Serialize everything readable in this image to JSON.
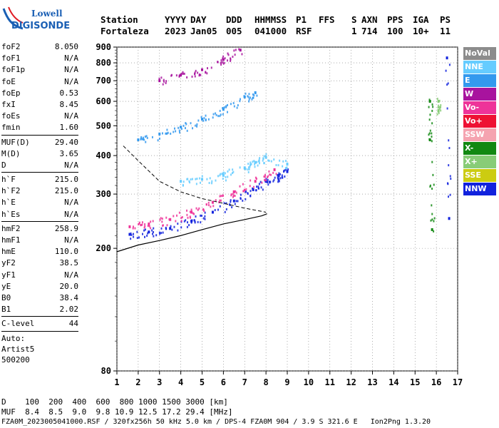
{
  "logo": {
    "line1": "Lowell",
    "line2": "DIGISONDE"
  },
  "header": {
    "labels": [
      "Station",
      "YYYY",
      "DAY",
      "DDD",
      "HHMMSS",
      "P1",
      "FFS",
      "S",
      "AXN",
      "PPS",
      "IGA",
      "PS"
    ],
    "values": [
      "Fortaleza",
      "2023",
      "Jan05",
      "005",
      "041000",
      "RSF",
      "",
      "1",
      "714",
      "100",
      "10+",
      "11"
    ]
  },
  "params": {
    "group1": [
      {
        "name": "foF2",
        "value": "8.050"
      },
      {
        "name": "foF1",
        "value": "N/A"
      },
      {
        "name": "foF1p",
        "value": "N/A"
      },
      {
        "name": "foE",
        "value": "N/A"
      },
      {
        "name": "foEp",
        "value": "0.53"
      },
      {
        "name": "fxI",
        "value": "8.45"
      },
      {
        "name": "foEs",
        "value": "N/A"
      },
      {
        "name": "fmin",
        "value": "1.60"
      }
    ],
    "group2": [
      {
        "name": "MUF(D)",
        "value": "29.40"
      },
      {
        "name": "M(D)",
        "value": "3.65"
      },
      {
        "name": "D",
        "value": "N/A"
      }
    ],
    "group3": [
      {
        "name": "h`F",
        "value": "215.0"
      },
      {
        "name": "h`F2",
        "value": "215.0"
      },
      {
        "name": "h`E",
        "value": "N/A"
      },
      {
        "name": "h`Es",
        "value": "N/A"
      }
    ],
    "group4": [
      {
        "name": "hmF2",
        "value": "258.9"
      },
      {
        "name": "hmF1",
        "value": "N/A"
      },
      {
        "name": "hmE",
        "value": "110.0"
      },
      {
        "name": "yF2",
        "value": "38.5"
      },
      {
        "name": "yF1",
        "value": "N/A"
      },
      {
        "name": "yE",
        "value": "20.0"
      },
      {
        "name": "B0",
        "value": "38.4"
      },
      {
        "name": "B1",
        "value": "2.02"
      }
    ],
    "clevel": {
      "name": "C-level",
      "value": "44"
    },
    "auto": [
      "Auto:",
      "Artist5",
      "500200"
    ]
  },
  "legend": [
    {
      "label": "NoVal",
      "color": "#8c8c8c"
    },
    {
      "label": "NNE",
      "color": "#66ccff"
    },
    {
      "label": "E",
      "color": "#3399ee"
    },
    {
      "label": "W",
      "color": "#a8139e"
    },
    {
      "label": "Vo-",
      "color": "#ee3399"
    },
    {
      "label": "Vo+",
      "color": "#ee1133"
    },
    {
      "label": "SSW",
      "color": "#f5a3b0"
    },
    {
      "label": "X-",
      "color": "#118811"
    },
    {
      "label": "X+",
      "color": "#88cc77"
    },
    {
      "label": "SSE",
      "color": "#cccc11"
    },
    {
      "label": "NNW",
      "color": "#1122dd"
    }
  ],
  "chart_data": {
    "type": "scatter",
    "xlabel": "",
    "ylabel": "",
    "x_ticks": [
      1,
      2,
      3,
      4,
      5,
      6,
      7,
      8,
      9,
      10,
      11,
      12,
      13,
      14,
      15,
      16,
      17
    ],
    "y_ticks": [
      80,
      200,
      300,
      400,
      500,
      600,
      700,
      800,
      900
    ],
    "y_scale": "log",
    "xlim": [
      1,
      17
    ],
    "ylim": [
      80,
      900
    ],
    "grid": true,
    "legend_position": "right",
    "series": [
      {
        "color": "#1122dd",
        "points": [
          [
            1.6,
            222
          ],
          [
            2.5,
            226
          ],
          [
            3.5,
            232
          ],
          [
            4.5,
            245
          ],
          [
            5.5,
            262
          ],
          [
            6.5,
            285
          ],
          [
            7.4,
            310
          ],
          [
            8.0,
            330
          ],
          [
            8.6,
            345
          ],
          [
            9.0,
            355
          ]
        ]
      },
      {
        "color": "#ee3399",
        "points": [
          [
            1.6,
            235
          ],
          [
            2.5,
            240
          ],
          [
            3.5,
            248
          ],
          [
            4.5,
            262
          ],
          [
            5.5,
            282
          ],
          [
            6.5,
            305
          ],
          [
            7.5,
            330
          ],
          [
            8.4,
            360
          ]
        ]
      },
      {
        "color": "#66ccff",
        "points": [
          [
            4.0,
            330
          ],
          [
            5.0,
            335
          ],
          [
            6.0,
            345
          ],
          [
            7.0,
            365
          ],
          [
            7.5,
            380
          ],
          [
            8.0,
            395
          ],
          [
            9.0,
            375
          ]
        ]
      },
      {
        "color": "#3399ee",
        "points": [
          [
            2.0,
            450
          ],
          [
            3.0,
            470
          ],
          [
            4.0,
            495
          ],
          [
            5.0,
            525
          ],
          [
            6.0,
            565
          ],
          [
            7.0,
            620
          ],
          [
            7.5,
            640
          ]
        ]
      },
      {
        "color": "#a8139e",
        "points": [
          [
            3.0,
            700
          ],
          [
            4.0,
            730
          ],
          [
            5.0,
            760
          ],
          [
            6.0,
            820
          ],
          [
            6.8,
            880
          ]
        ]
      },
      {
        "color": "#118811",
        "points": [
          [
            15.7,
            600
          ],
          [
            15.7,
            450
          ],
          [
            15.8,
            230
          ]
        ]
      },
      {
        "color": "#88cc77",
        "points": [
          [
            16.1,
            600
          ],
          [
            16.1,
            560
          ]
        ]
      },
      {
        "color": "#1122dd",
        "points": [
          [
            16.5,
            830
          ],
          [
            16.6,
            250
          ]
        ]
      }
    ],
    "profile_curve": [
      [
        1.0,
        195
      ],
      [
        2.0,
        205
      ],
      [
        3.0,
        212
      ],
      [
        4.0,
        220
      ],
      [
        5.0,
        230
      ],
      [
        6.0,
        240
      ],
      [
        7.0,
        248
      ],
      [
        7.8,
        255
      ],
      [
        8.05,
        259
      ]
    ],
    "profile_dashed": [
      [
        1.3,
        430
      ],
      [
        2.0,
        385
      ],
      [
        3.0,
        330
      ],
      [
        4.0,
        305
      ],
      [
        5.0,
        290
      ],
      [
        6.0,
        280
      ],
      [
        7.0,
        270
      ],
      [
        8.0,
        262
      ]
    ]
  },
  "bottom": {
    "d_label": "D",
    "d_values": [
      "100",
      "200",
      "400",
      "600",
      "800",
      "1000",
      "1500",
      "3000",
      "[km]"
    ],
    "muf_label": "MUF",
    "muf_values": [
      "8.4",
      "8.5",
      "9.0",
      "9.8",
      "10.9",
      "12.5",
      "17.2",
      "29.4",
      "[MHz]"
    ]
  },
  "footer": "FZA0M_2023005041000.RSF / 320fx256h 50 kHz 5.0 km / DPS-4 FZA0M 904 / 3.9 S 321.6 E   Ion2Png 1.3.20"
}
